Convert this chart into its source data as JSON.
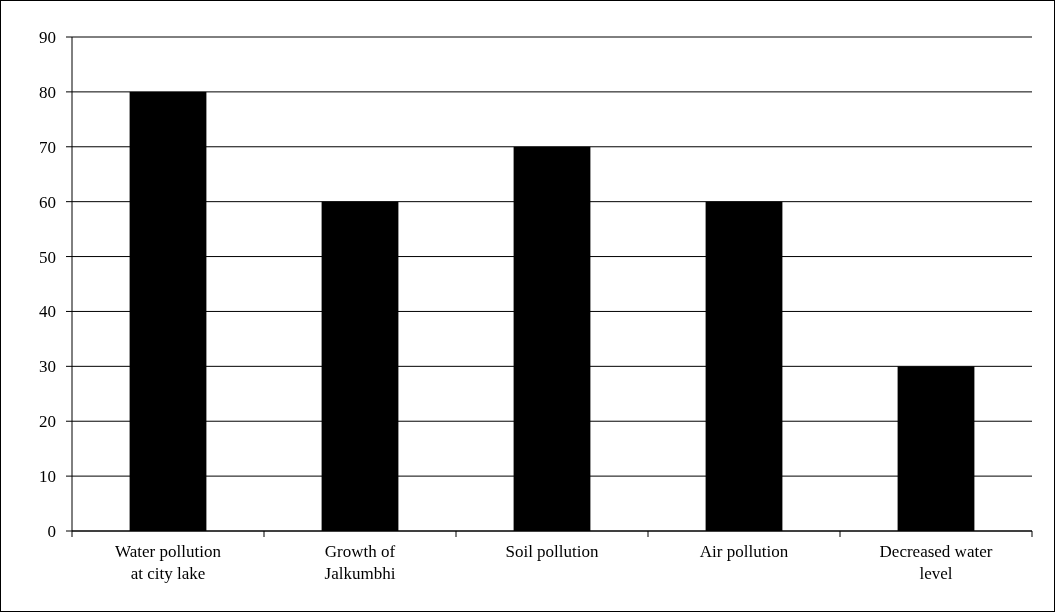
{
  "chart_data": {
    "type": "bar",
    "categories": [
      "Water pollution at city lake",
      "Growth of Jalkumbhi",
      "Soil pollution",
      "Air pollution",
      "Decreased water level"
    ],
    "values": [
      80,
      60,
      70,
      60,
      30
    ],
    "color": "#000000",
    "ylim": [
      0,
      90
    ],
    "yticks": [
      0,
      10,
      20,
      30,
      40,
      50,
      60,
      70,
      80,
      90
    ],
    "grid": "y"
  }
}
